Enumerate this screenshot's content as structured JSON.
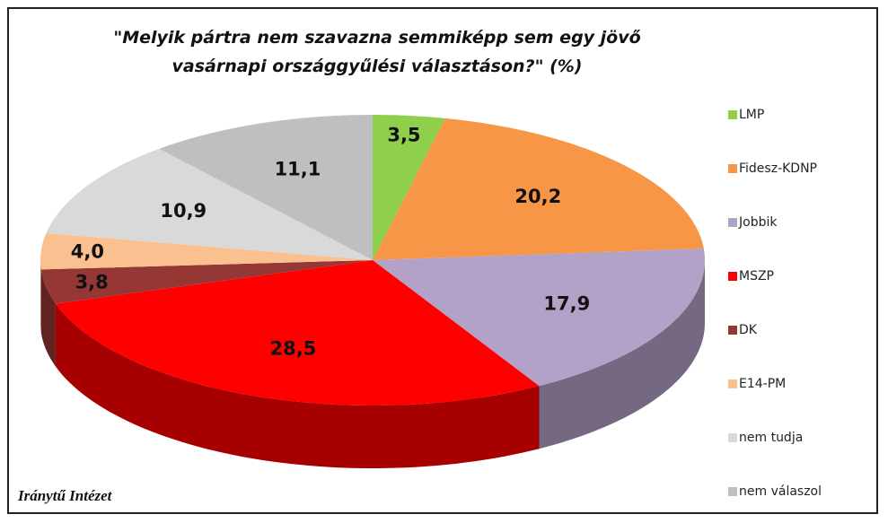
{
  "chart_data": {
    "type": "pie3d",
    "title": "\"Melyik pártra nem szavazna semmiképp sem egy jövő vasárnapi országgyűlési választáson?\" (%)",
    "categories": [
      "LMP",
      "Fidesz-KDNP",
      "Jobbik",
      "MSZP",
      "DK",
      "E14-PM",
      "nem tudja",
      "nem válaszol"
    ],
    "values": [
      3.5,
      20.2,
      17.9,
      28.5,
      3.8,
      4.0,
      10.9,
      11.1
    ],
    "value_labels": [
      "3,5",
      "20,2",
      "17,9",
      "28,5",
      "3,8",
      "4,0",
      "10,9",
      "11,1"
    ],
    "colors": [
      "#8ed04c",
      "#f79646",
      "#b3a2c7",
      "#ff0000",
      "#953735",
      "#fac090",
      "#d9d9d9",
      "#bfbfbf"
    ],
    "legend": "right",
    "source": "Iránytű Intézet"
  }
}
